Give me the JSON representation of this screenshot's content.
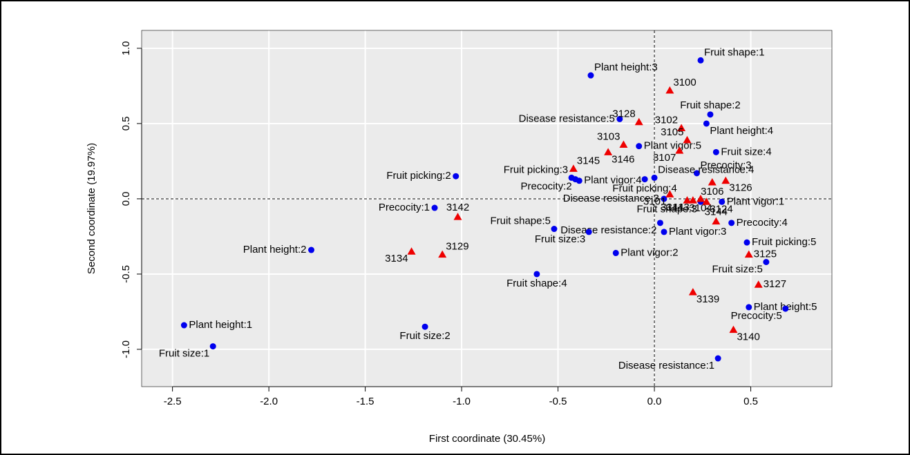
{
  "chart_data": {
    "type": "scatter",
    "x_label": "First coordinate (30.45%)",
    "y_label": "Second coordinate (19.97%)",
    "xlim": [
      -2.66,
      0.921
    ],
    "ylim": [
      -1.248,
      1.119
    ],
    "xticks": [
      -2.5,
      {
        "value": -2.0,
        "label": "-2.0"
      },
      -1.5,
      {
        "value": -1.0,
        "label": "-1.0"
      },
      -0.5,
      {
        "value": 0.0,
        "label": "0.0"
      },
      0.5
    ],
    "yticks": [
      {
        "value": -1.0,
        "label": "-1.0"
      },
      -0.5,
      {
        "value": 0.0,
        "label": "0.0"
      },
      0.5,
      {
        "value": 1.0,
        "label": "1.0"
      }
    ],
    "grid": true,
    "hline": 0,
    "vline": 0,
    "series": [
      {
        "marker": "circle",
        "color": "#0000ee",
        "labels": [
          "Fruit shape:1",
          "Plant height:3",
          "Fruit shape:2",
          "Disease resistance:5",
          "Plant height:4",
          "Plant vigor:5",
          "Fruit size:4",
          "Precocity:3",
          "Disease resistance:4",
          "Fruit picking:2",
          "Fruit picking:3",
          "Plant vigor:4",
          "Precocity:2",
          "Fruit picking:4",
          "Disease resistance:3",
          "Fruit shape:3",
          "Plant vigor:1",
          "Precocity:1",
          "Precocity:4",
          "Disease resistance:2",
          "Plant vigor:3",
          "Fruit shape:5",
          "Fruit size:3",
          "Fruit picking:5",
          "Plant height:2",
          "Plant vigor:2",
          "Fruit size:5",
          "Fruit shape:4",
          "Plant height:5",
          "Precocity:5",
          "Plant height:1",
          "Fruit size:2",
          "Fruit size:1",
          "Disease resistance:1"
        ],
        "x": [
          0.24,
          -0.33,
          0.29,
          -0.18,
          0.27,
          -0.08,
          0.32,
          0.22,
          0.0,
          -1.03,
          -0.43,
          -0.39,
          -0.41,
          -0.05,
          0.05,
          0.24,
          0.35,
          -1.14,
          0.4,
          0.03,
          0.05,
          -0.52,
          -0.34,
          0.48,
          -1.78,
          -0.2,
          0.58,
          -0.61,
          0.49,
          0.68,
          -2.44,
          -1.19,
          -2.29,
          0.33
        ],
        "values": [
          0.92,
          0.82,
          0.56,
          0.53,
          0.5,
          0.35,
          0.31,
          0.17,
          0.14,
          0.15,
          0.14,
          0.12,
          0.13,
          0.13,
          0.0,
          -0.02,
          -0.02,
          -0.06,
          -0.16,
          -0.16,
          -0.22,
          -0.2,
          -0.22,
          -0.29,
          -0.34,
          -0.36,
          -0.42,
          -0.5,
          -0.72,
          -0.73,
          -0.84,
          -0.85,
          -0.98,
          -1.06
        ]
      },
      {
        "marker": "triangle",
        "color": "#ee0000",
        "labels": [
          "3100",
          "3128",
          "3102",
          "3105",
          "3103",
          "3146",
          "3107",
          "3145",
          "3126",
          "3106",
          "3101",
          "3141",
          "3143",
          "3104",
          "3124",
          "3144",
          "3142",
          "3129",
          "3134",
          "3125",
          "3127",
          "3139",
          "3140"
        ],
        "x": [
          0.08,
          -0.08,
          0.14,
          0.17,
          -0.16,
          -0.24,
          0.13,
          -0.42,
          0.37,
          0.3,
          0.08,
          0.17,
          0.2,
          0.24,
          0.27,
          0.32,
          -1.02,
          -1.1,
          -1.26,
          0.49,
          0.54,
          0.2,
          0.41
        ],
        "values": [
          0.72,
          0.51,
          0.47,
          0.39,
          0.36,
          0.31,
          0.32,
          0.2,
          0.12,
          0.11,
          0.03,
          -0.01,
          -0.01,
          0.0,
          -0.02,
          -0.15,
          -0.12,
          -0.37,
          -0.35,
          -0.37,
          -0.57,
          -0.62,
          -0.87
        ]
      }
    ]
  }
}
